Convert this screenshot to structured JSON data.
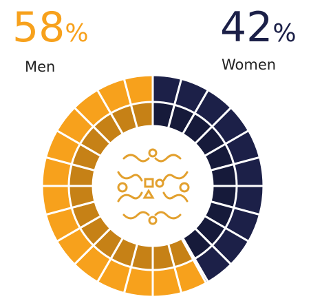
{
  "chart_data": {
    "type": "donut",
    "categories": [
      "Men",
      "Women"
    ],
    "values": [
      58,
      42
    ],
    "value_labels": [
      "58%",
      "42%"
    ],
    "colors": [
      "#f7a11c",
      "#1c2048"
    ]
  }
}
